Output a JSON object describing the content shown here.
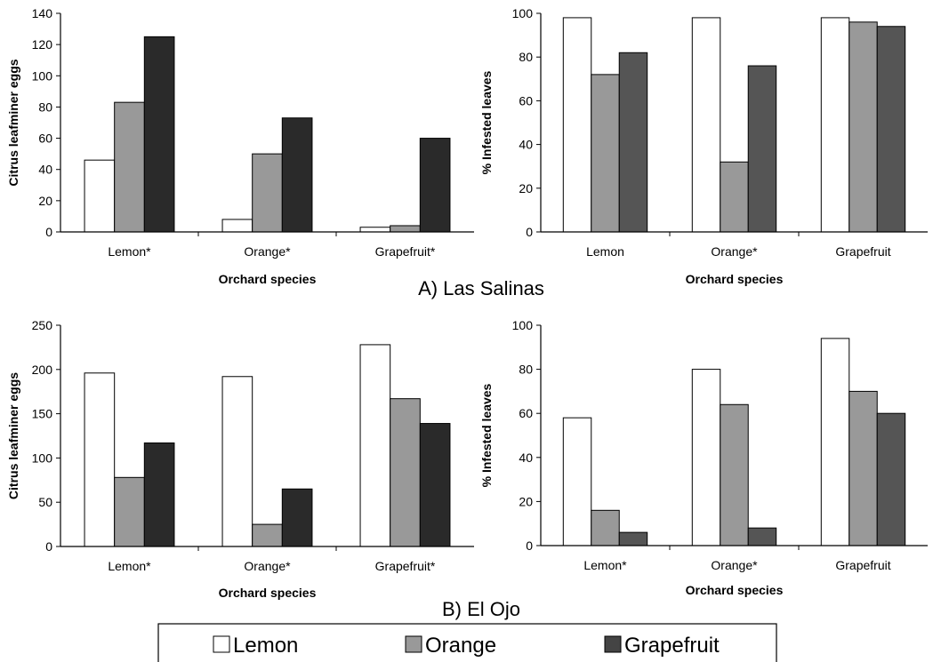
{
  "captions": {
    "a": "A) Las Salinas",
    "b": "B) El Ojo"
  },
  "legend": [
    {
      "name": "Lemon",
      "color": "#ffffff"
    },
    {
      "name": "Orange",
      "color": "#999999"
    },
    {
      "name": "Grapefruit",
      "color": "#444444"
    }
  ],
  "chart_data": [
    {
      "type": "bar",
      "site": "A) Las Salinas",
      "title": "",
      "categories": [
        "Lemon*",
        "Orange*",
        "Grapefruit*"
      ],
      "xlabel": "Orchard species",
      "ylabel": "Citrus leafminer eggs",
      "ylim": [
        0,
        140
      ],
      "yticks": [
        0,
        20,
        40,
        60,
        80,
        100,
        120,
        140
      ],
      "grid": false,
      "series": [
        {
          "name": "Lemon",
          "color": "#ffffff",
          "values": [
            46,
            8,
            3
          ]
        },
        {
          "name": "Orange",
          "color": "#999999",
          "values": [
            83,
            50,
            4
          ]
        },
        {
          "name": "Grapefruit",
          "color": "#2a2a2a",
          "values": [
            125,
            73,
            60
          ]
        }
      ]
    },
    {
      "type": "bar",
      "site": "A) Las Salinas",
      "title": "",
      "categories": [
        "Lemon",
        "Orange*",
        "Grapefruit"
      ],
      "xlabel": "Orchard species",
      "ylabel": "% Infested leaves",
      "ylim": [
        0,
        100
      ],
      "yticks": [
        0,
        20,
        40,
        60,
        80,
        100
      ],
      "grid": false,
      "series": [
        {
          "name": "Lemon",
          "color": "#ffffff",
          "values": [
            98,
            98,
            98
          ]
        },
        {
          "name": "Orange",
          "color": "#999999",
          "values": [
            72,
            32,
            96
          ]
        },
        {
          "name": "Grapefruit",
          "color": "#555555",
          "values": [
            82,
            76,
            94
          ]
        }
      ]
    },
    {
      "type": "bar",
      "site": "B) El Ojo",
      "title": "",
      "categories": [
        "Lemon*",
        "Orange*",
        "Grapefruit*"
      ],
      "xlabel": "Orchard species",
      "ylabel": "Citrus leafminer eggs",
      "ylim": [
        0,
        250
      ],
      "yticks": [
        0,
        50,
        100,
        150,
        200,
        250
      ],
      "grid": false,
      "series": [
        {
          "name": "Lemon",
          "color": "#ffffff",
          "values": [
            196,
            192,
            228
          ]
        },
        {
          "name": "Orange",
          "color": "#999999",
          "values": [
            78,
            25,
            167
          ]
        },
        {
          "name": "Grapefruit",
          "color": "#2a2a2a",
          "values": [
            117,
            65,
            139
          ]
        }
      ]
    },
    {
      "type": "bar",
      "site": "B) El Ojo",
      "title": "",
      "categories": [
        "Lemon*",
        "Orange*",
        "Grapefruit"
      ],
      "xlabel": "Orchard species",
      "ylabel": "% Infested leaves",
      "ylim": [
        0,
        100
      ],
      "yticks": [
        0,
        20,
        40,
        60,
        80,
        100
      ],
      "grid": false,
      "series": [
        {
          "name": "Lemon",
          "color": "#ffffff",
          "values": [
            58,
            80,
            94
          ]
        },
        {
          "name": "Orange",
          "color": "#999999",
          "values": [
            16,
            64,
            70
          ]
        },
        {
          "name": "Grapefruit",
          "color": "#555555",
          "values": [
            6,
            8,
            60
          ]
        }
      ]
    }
  ]
}
